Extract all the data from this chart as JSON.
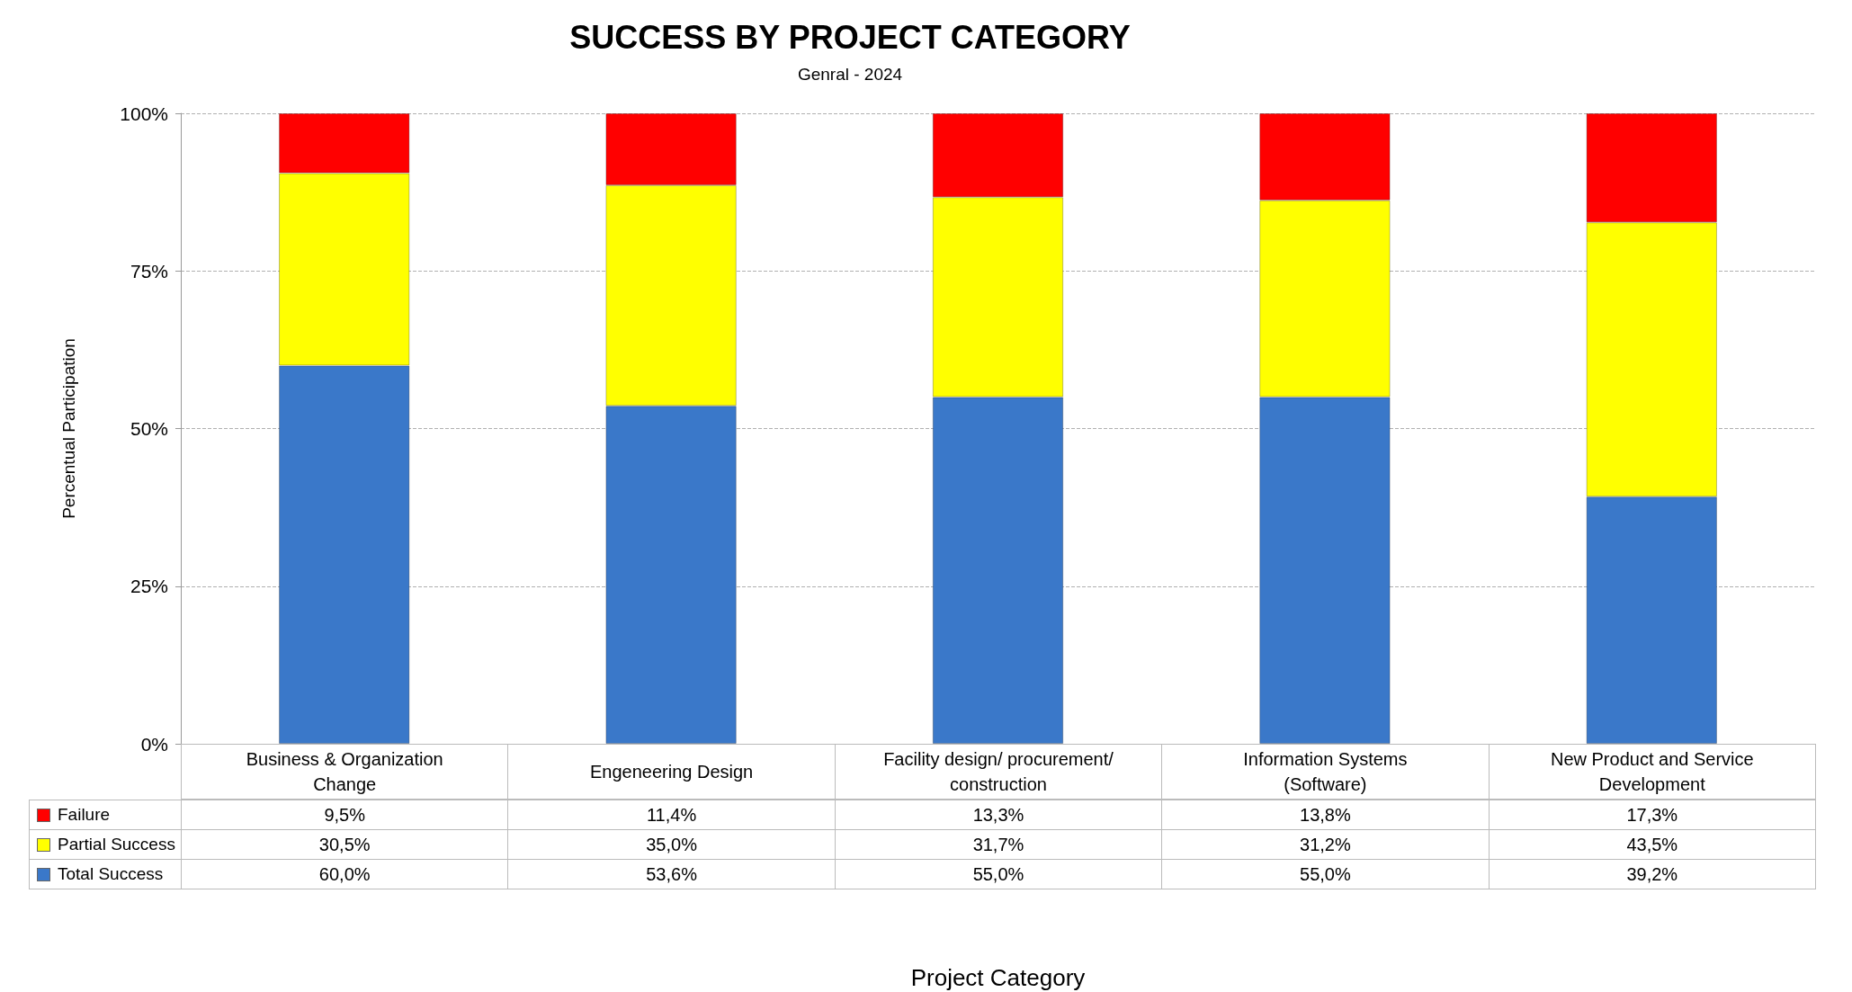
{
  "chart_data": {
    "type": "bar",
    "title": "SUCCESS BY PROJECT CATEGORY",
    "subtitle": "Genral - 2024",
    "annotations": [
      "Project Category"
    ],
    "ylabel": "Percentual Participation",
    "categories": [
      "Business & Organization Change",
      "Engeneering Design",
      "Facility design/ procurement/ construction",
      "Information  Systems (Software)",
      "New Product and Service Development"
    ],
    "series": [
      {
        "name": "Total Success",
        "color": "#3a78c9",
        "values": [
          60.0,
          53.6,
          55.0,
          55.0,
          39.2
        ],
        "value_labels": [
          "60,0%",
          "53,6%",
          "55,0%",
          "55,0%",
          "39,2%"
        ]
      },
      {
        "name": "Partial Success",
        "color": "#ffff00",
        "values": [
          30.5,
          35.0,
          31.7,
          31.2,
          43.5
        ],
        "value_labels": [
          "30,5%",
          "35,0%",
          "31,7%",
          "31,2%",
          "43,5%"
        ]
      },
      {
        "name": "Failure",
        "color": "#ff0000",
        "values": [
          9.5,
          11.4,
          13.3,
          13.8,
          17.3
        ],
        "value_labels": [
          "9,5%",
          "11,4%",
          "13,3%",
          "13,8%",
          "17,3%"
        ]
      }
    ],
    "stacked": true,
    "ylim": [
      0,
      100
    ],
    "yticks": [
      {
        "value": 0,
        "label": "0%"
      },
      {
        "value": 25,
        "label": "25%"
      },
      {
        "value": 50,
        "label": "50%"
      },
      {
        "value": 75,
        "label": "75%"
      },
      {
        "value": 100,
        "label": "100%"
      }
    ],
    "grid": "y",
    "legend": "bottom"
  }
}
